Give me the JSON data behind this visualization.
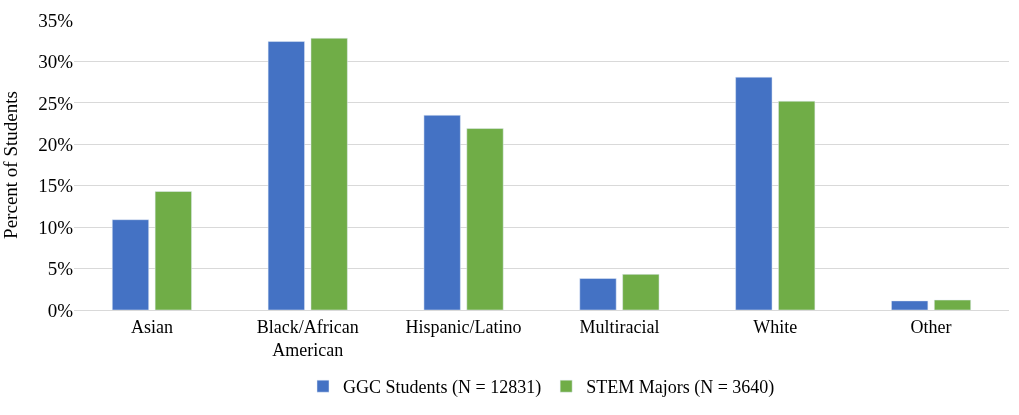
{
  "chart_data": {
    "type": "bar",
    "ylabel": "Percent of Students",
    "categories": [
      "Asian",
      "Black/African\nAmerican",
      "Hispanic/Latino",
      "Multiracial",
      "White",
      "Other"
    ],
    "series": [
      {
        "name": "GGC Students (N = 12831)",
        "color": "#4472c4",
        "values": [
          10.9,
          32.4,
          23.5,
          3.8,
          28.1,
          1.1
        ]
      },
      {
        "name": "STEM Majors (N = 3640)",
        "color": "#70ad47",
        "values": [
          14.3,
          32.8,
          21.9,
          4.3,
          25.2,
          1.2
        ]
      }
    ],
    "ylim": [
      0,
      35
    ],
    "yticks": [
      {
        "value": 0,
        "label": "0%"
      },
      {
        "value": 5,
        "label": "5%"
      },
      {
        "value": 10,
        "label": "10%"
      },
      {
        "value": 15,
        "label": "15%"
      },
      {
        "value": 20,
        "label": "20%"
      },
      {
        "value": 25,
        "label": "25%"
      },
      {
        "value": 30,
        "label": "30%"
      },
      {
        "value": 35,
        "label": "35%"
      }
    ],
    "grid": "y",
    "legend": "bottom"
  }
}
